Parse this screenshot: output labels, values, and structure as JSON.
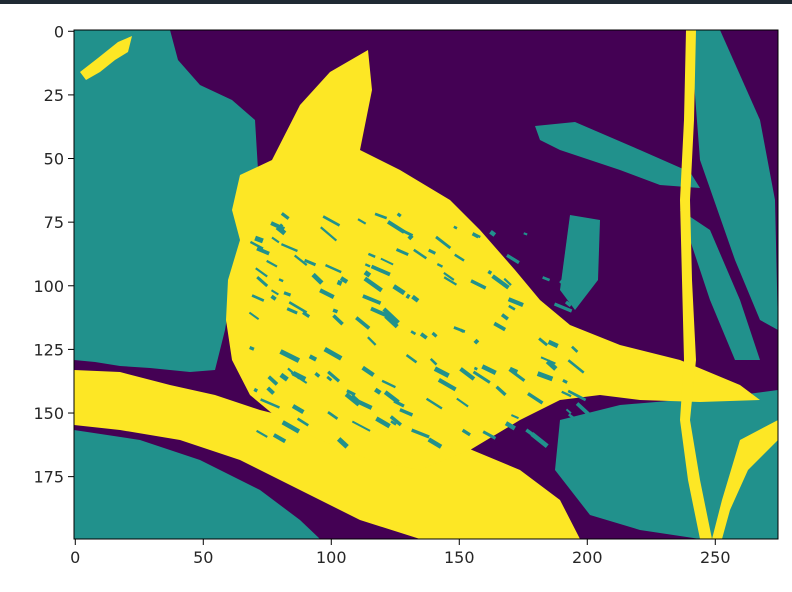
{
  "window": {
    "top_rule_color": "#1f2a33"
  },
  "chart_data": {
    "type": "heatmap",
    "title": "",
    "xlabel": "",
    "ylabel": "",
    "colormap": "viridis",
    "levels": 3,
    "colors": [
      "#440154",
      "#21918c",
      "#fde725"
    ],
    "image_width": 275,
    "image_height": 200,
    "xlim": [
      -0.5,
      274.5
    ],
    "ylim": [
      199.5,
      -0.5
    ],
    "x_ticks": [
      0,
      50,
      100,
      150,
      200,
      250
    ],
    "x_tick_labels": [
      "0",
      "50",
      "100",
      "150",
      "200",
      "250"
    ],
    "y_ticks": [
      0,
      25,
      50,
      75,
      100,
      125,
      150,
      175
    ],
    "y_tick_labels": [
      "0",
      "25",
      "50",
      "75",
      "100",
      "125",
      "150",
      "175"
    ],
    "grid": false,
    "description_of_content": ""
  }
}
